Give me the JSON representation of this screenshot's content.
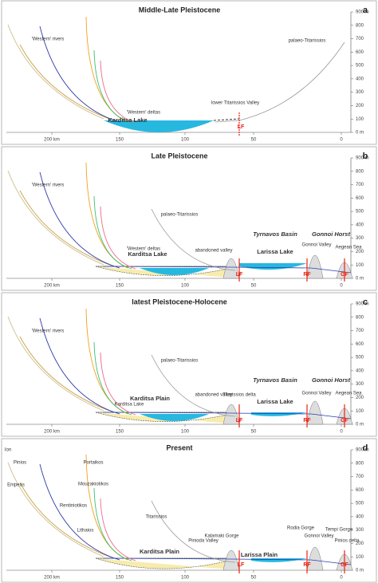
{
  "axis": {
    "x_ticks": [
      "200 km",
      "150",
      "100",
      "50",
      "0"
    ],
    "y_ticks": [
      "900 m",
      "800",
      "700",
      "600",
      "500",
      "400",
      "300",
      "200",
      "100",
      "0 m"
    ]
  },
  "panels": [
    {
      "title": "Middle-Late Pleistocene",
      "letter": "a",
      "labels": [
        "'Western' rivers",
        "palaeo-Titarissios",
        "'Western' deltas",
        "lower Titarissios Valley",
        "Karditsa Lake",
        "LF"
      ]
    },
    {
      "title": "Late Pleistocene",
      "letter": "b",
      "labels": [
        "'Western' rivers",
        "palaeo-Titarissios",
        "'Western' deltas",
        "Karditsa Lake",
        "abandoned valley",
        "Tyrnavos Basin",
        "Gonnoi Horst",
        "Larissa Lake",
        "Gonnoi Valley",
        "Aegean Sea",
        "LF",
        "RF",
        "GF"
      ]
    },
    {
      "title": "latest Pleistocene-Holocene",
      "letter": "c",
      "labels": [
        "'Western' rivers",
        "palaeo-Titarissios",
        "Karditsa Plain",
        "Karditsa Lake",
        "abandoned valley",
        "Titarissios delta",
        "Tyrnavos Basin",
        "Gonnoi Horst",
        "Larissa Lake",
        "Gonnoi Valley",
        "Aegean Sea",
        "LF",
        "RF",
        "GF"
      ]
    },
    {
      "title": "Present",
      "letter": "d",
      "labels": [
        "Ion",
        "Pinios",
        "Enipeas",
        "Portaikos",
        "Mouzakiotikos",
        "Rentiniotikos",
        "Lithaios",
        "Titarissios",
        "Pinioda Valley",
        "Kalamaki Gorge",
        "Karditsa Plain",
        "Larissa Plain",
        "Rodia Gorge",
        "Gonnoi Valley",
        "Tempi Gorge",
        "Pinios delta",
        "LF",
        "RF",
        "GF"
      ]
    }
  ]
}
